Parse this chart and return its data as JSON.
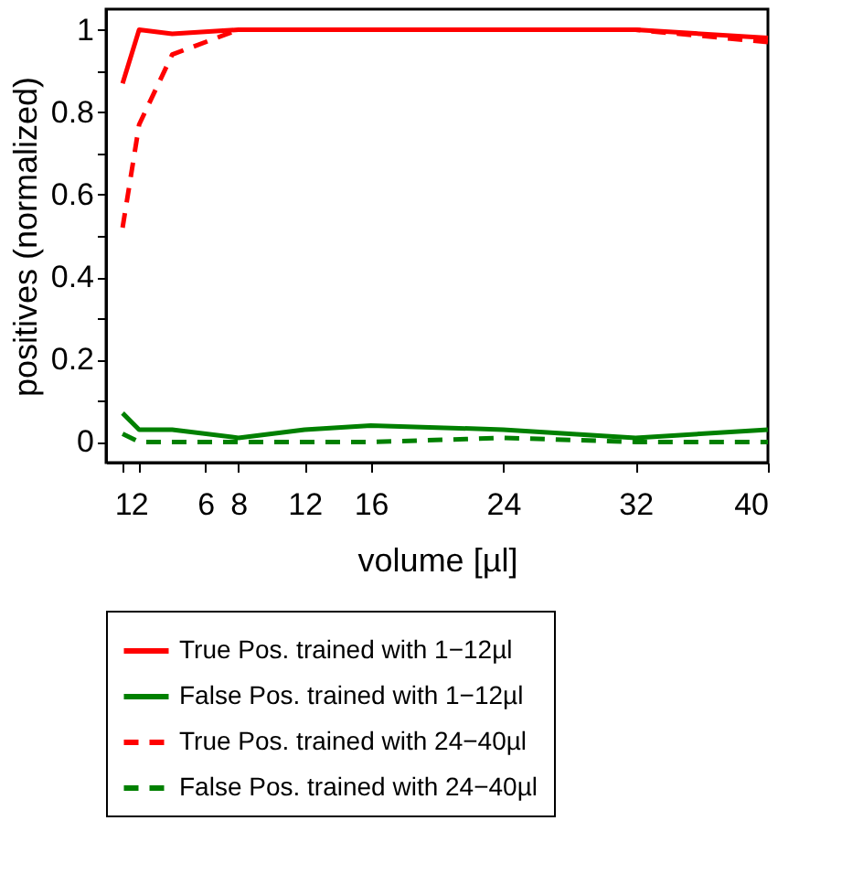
{
  "chart_data": {
    "type": "line",
    "xlabel": "volume [µl]",
    "ylabel": "positives (normalized)",
    "x": [
      1,
      2,
      4,
      8,
      12,
      16,
      24,
      32,
      40
    ],
    "series": [
      {
        "name": "True Pos. trained with 1−12µl",
        "color": "#ff0000",
        "line_style": "solid",
        "values": [
          0.87,
          1.0,
          0.99,
          1.0,
          1.0,
          1.0,
          1.0,
          1.0,
          0.98
        ]
      },
      {
        "name": "False Pos. trained with 1−12µl",
        "color": "#008000",
        "line_style": "solid",
        "values": [
          0.07,
          0.03,
          0.03,
          0.01,
          0.03,
          0.04,
          0.03,
          0.01,
          0.03
        ]
      },
      {
        "name": "True Pos. trained with 24−40µl",
        "color": "#ff0000",
        "line_style": "dashed",
        "values": [
          0.52,
          0.77,
          0.94,
          1.0,
          1.0,
          1.0,
          1.0,
          1.0,
          0.97
        ]
      },
      {
        "name": "False Pos. trained with 24−40µl",
        "color": "#008000",
        "line_style": "dashed",
        "values": [
          0.02,
          0.0,
          0.0,
          0.0,
          0.0,
          0.0,
          0.01,
          0.0,
          0.0
        ]
      }
    ],
    "xlim": [
      0,
      40
    ],
    "xticks": [
      1,
      2,
      6,
      8,
      12,
      16,
      24,
      32,
      40
    ],
    "ylim": [
      -0.05,
      1.05
    ],
    "yticks": [
      0,
      {
        "value": 0.1,
        "label": null
      },
      0.2,
      {
        "value": 0.3,
        "label": null
      },
      0.4,
      {
        "value": 0.5,
        "label": null
      },
      0.6,
      {
        "value": 0.7,
        "label": null
      },
      0.8,
      {
        "value": 0.9,
        "label": null
      },
      1
    ],
    "grid": false,
    "legend": "bottom",
    "marker": "none"
  }
}
